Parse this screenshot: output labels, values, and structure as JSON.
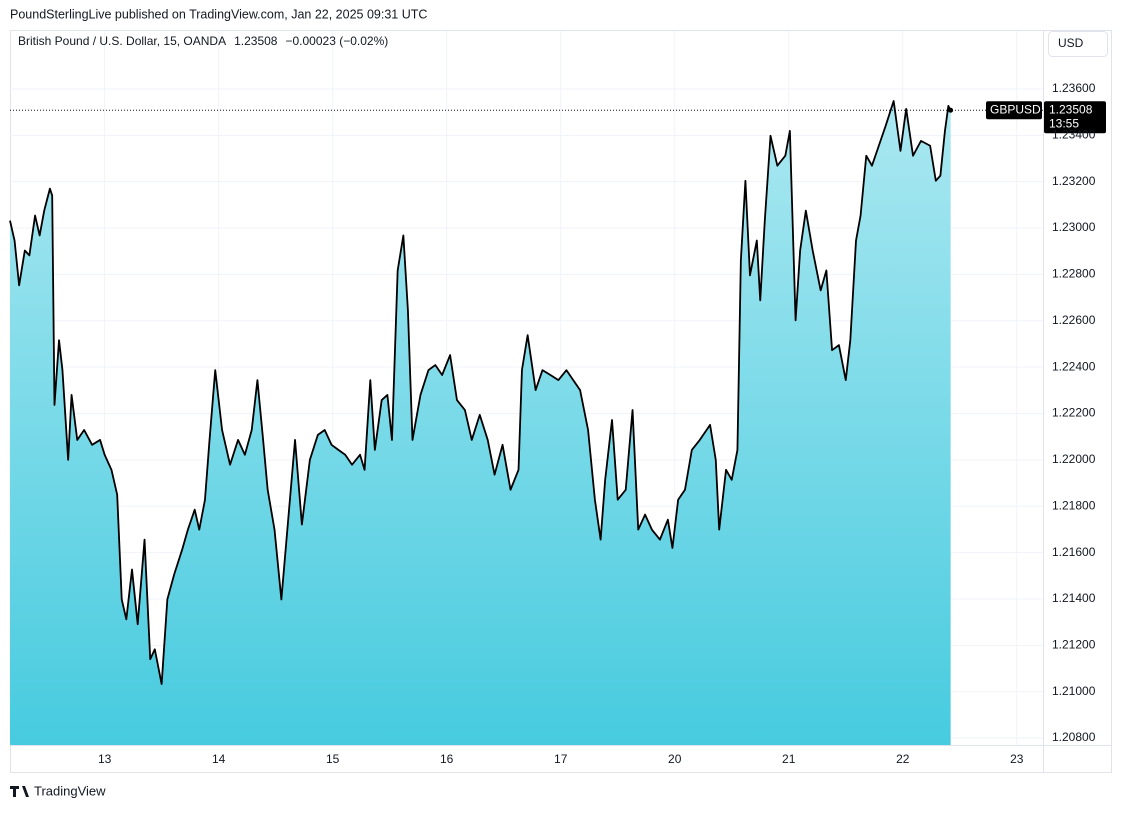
{
  "header": {
    "published": "PoundSterlingLive published on TradingView.com, Jan 22, 2025 09:31 UTC"
  },
  "footer": {
    "brand": "TradingView"
  },
  "chart_data": {
    "type": "area",
    "title": "British Pound / U.S. Dollar, 15, OANDA",
    "last_value": 1.23508,
    "change": "−0.00023 (−0.02%)",
    "currency": "USD",
    "symbol_label": "GBPUSD",
    "countdown": "13:55",
    "color": "#000000",
    "fill_colors": [
      "#abe8f1",
      "#47cbdf"
    ],
    "grid": true,
    "x": [
      0.17,
      0.21,
      0.25,
      0.3,
      0.34,
      0.39,
      0.43,
      0.47,
      0.52,
      0.54,
      0.56,
      0.6,
      0.63,
      0.68,
      0.71,
      0.76,
      0.82,
      0.89,
      0.96,
      1.0,
      1.06,
      1.11,
      1.15,
      1.19,
      1.24,
      1.29,
      1.35,
      1.4,
      1.44,
      1.5,
      1.55,
      1.61,
      1.68,
      1.73,
      1.79,
      1.83,
      1.88,
      1.92,
      1.97,
      2.03,
      2.1,
      2.17,
      2.23,
      2.29,
      2.34,
      2.39,
      2.43,
      2.49,
      2.55,
      2.61,
      2.67,
      2.73,
      2.8,
      2.87,
      2.93,
      2.99,
      3.05,
      3.11,
      3.17,
      3.24,
      3.28,
      3.33,
      3.37,
      3.43,
      3.48,
      3.52,
      3.57,
      3.62,
      3.66,
      3.7,
      3.77,
      3.84,
      3.9,
      3.96,
      4.03,
      4.09,
      4.16,
      4.22,
      4.29,
      4.36,
      4.42,
      4.49,
      4.56,
      4.63,
      4.66,
      4.71,
      4.78,
      4.84,
      4.91,
      4.98,
      5.05,
      5.11,
      5.17,
      5.24,
      5.3,
      5.35,
      5.39,
      5.45,
      5.5,
      5.57,
      5.63,
      5.68,
      5.74,
      5.8,
      5.87,
      5.94,
      5.98,
      6.03,
      6.09,
      6.15,
      6.22,
      6.31,
      6.36,
      6.39,
      6.45,
      6.5,
      6.55,
      6.58,
      6.62,
      6.66,
      6.72,
      6.75,
      6.79,
      6.84,
      6.9,
      6.97,
      7.01,
      7.06,
      7.1,
      7.15,
      7.21,
      7.28,
      7.33,
      7.38,
      7.44,
      7.5,
      7.54,
      7.59,
      7.63,
      7.68,
      7.73,
      7.79,
      7.85,
      7.92,
      7.98,
      8.03,
      8.09,
      8.16,
      8.24,
      8.29,
      8.33,
      8.37,
      8.4,
      8.42
    ],
    "values": [
      1.23032,
      1.22946,
      1.22753,
      1.22903,
      1.22882,
      1.23054,
      1.22968,
      1.23075,
      1.2317,
      1.2314,
      1.22237,
      1.22516,
      1.22387,
      1.22,
      1.2228,
      1.22086,
      1.22129,
      1.22065,
      1.22086,
      1.22022,
      1.21957,
      1.2185,
      1.21398,
      1.21312,
      1.21527,
      1.21291,
      1.21656,
      1.2114,
      1.21183,
      1.21033,
      1.21398,
      1.21506,
      1.21613,
      1.21699,
      1.21785,
      1.21699,
      1.21828,
      1.22086,
      1.22387,
      1.22129,
      1.21979,
      1.22086,
      1.22022,
      1.22129,
      1.22344,
      1.22086,
      1.21871,
      1.21699,
      1.21398,
      1.21742,
      1.22086,
      1.21721,
      1.22,
      1.22108,
      1.22129,
      1.22065,
      1.22043,
      1.22022,
      1.21979,
      1.22022,
      1.21957,
      1.22344,
      1.22043,
      1.22258,
      1.2228,
      1.22086,
      1.22817,
      1.22968,
      1.22645,
      1.22086,
      1.2228,
      1.22387,
      1.22409,
      1.22366,
      1.22452,
      1.22258,
      1.22215,
      1.22086,
      1.22194,
      1.22086,
      1.21936,
      1.22065,
      1.21871,
      1.21957,
      1.22387,
      1.22538,
      1.22301,
      1.22387,
      1.22366,
      1.22344,
      1.22387,
      1.22344,
      1.22301,
      1.22129,
      1.21828,
      1.21656,
      1.21914,
      1.22172,
      1.21828,
      1.21871,
      1.22215,
      1.21699,
      1.21764,
      1.21699,
      1.21656,
      1.21742,
      1.2162,
      1.21828,
      1.21871,
      1.22043,
      1.22086,
      1.22151,
      1.22,
      1.21699,
      1.21957,
      1.21914,
      1.22043,
      1.2286,
      1.23204,
      1.22796,
      1.22946,
      1.22688,
      1.23032,
      1.23398,
      1.23269,
      1.23312,
      1.23419,
      1.22602,
      1.22903,
      1.23075,
      1.22903,
      1.22731,
      1.22817,
      1.22473,
      1.22495,
      1.22344,
      1.22516,
      1.22946,
      1.23054,
      1.23312,
      1.23269,
      1.23355,
      1.23441,
      1.23548,
      1.23333,
      1.23514,
      1.23312,
      1.23376,
      1.23355,
      1.23204,
      1.23226,
      1.23419,
      1.23527,
      1.23508
    ],
    "xlim": [
      0.17,
      9.23
    ],
    "xticks": [
      {
        "value": 1,
        "label": "13"
      },
      {
        "value": 2,
        "label": "14"
      },
      {
        "value": 3,
        "label": "15"
      },
      {
        "value": 4,
        "label": "16"
      },
      {
        "value": 5,
        "label": "17"
      },
      {
        "value": 6,
        "label": "20"
      },
      {
        "value": 7,
        "label": "21"
      },
      {
        "value": 8,
        "label": "22"
      },
      {
        "value": 9,
        "label": "23"
      }
    ],
    "ylim": [
      1.2077,
      1.2385
    ],
    "yticks": [
      {
        "value": 1.208,
        "label": "1.20800"
      },
      {
        "value": 1.21,
        "label": "1.21000"
      },
      {
        "value": 1.212,
        "label": "1.21200"
      },
      {
        "value": 1.214,
        "label": "1.21400"
      },
      {
        "value": 1.216,
        "label": "1.21600"
      },
      {
        "value": 1.218,
        "label": "1.21800"
      },
      {
        "value": 1.22,
        "label": "1.22000"
      },
      {
        "value": 1.222,
        "label": "1.22200"
      },
      {
        "value": 1.224,
        "label": "1.22400"
      },
      {
        "value": 1.226,
        "label": "1.22600"
      },
      {
        "value": 1.228,
        "label": "1.22800"
      },
      {
        "value": 1.23,
        "label": "1.23000"
      },
      {
        "value": 1.232,
        "label": "1.23200"
      },
      {
        "value": 1.234,
        "label": "1.23400"
      },
      {
        "value": 1.236,
        "label": "1.23600"
      }
    ]
  }
}
